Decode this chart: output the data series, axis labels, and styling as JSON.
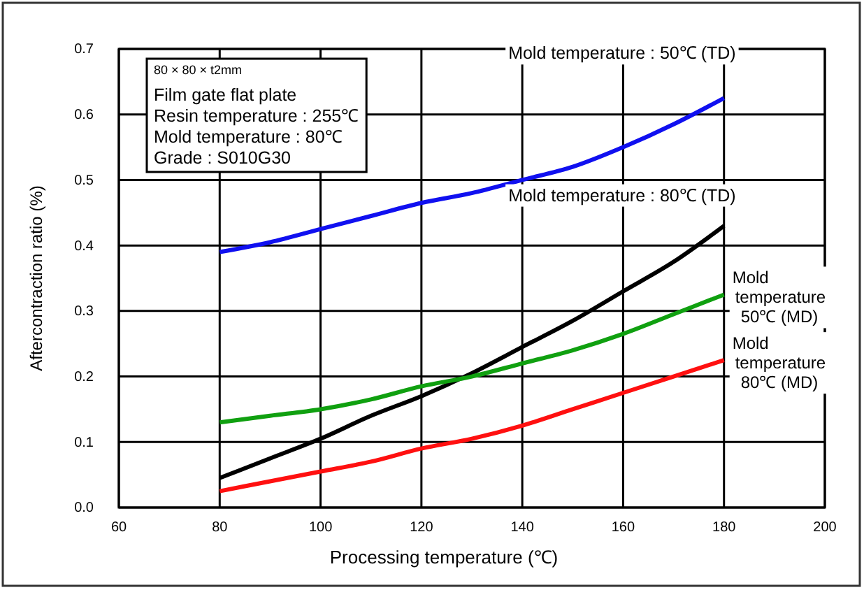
{
  "chart_data": {
    "type": "line",
    "xlabel": "Processing temperature (℃)",
    "ylabel": "Aftercontraction ratio (%)",
    "x": [
      80,
      90,
      100,
      110,
      120,
      130,
      140,
      150,
      160,
      170,
      180
    ],
    "series": [
      {
        "name": "Mold temperature : 50℃ (TD)",
        "color": "#1010f0",
        "values": [
          0.39,
          0.405,
          0.425,
          0.445,
          0.465,
          0.48,
          0.5,
          0.52,
          0.55,
          0.585,
          0.625
        ]
      },
      {
        "name": "Mold temperature : 80℃ (TD)",
        "color": "#000000",
        "values": [
          0.045,
          0.075,
          0.105,
          0.14,
          0.17,
          0.205,
          0.245,
          0.285,
          0.33,
          0.375,
          0.43
        ]
      },
      {
        "name": "Mold temperature 50℃ (MD)",
        "color": "#10a010",
        "values": [
          0.13,
          0.14,
          0.15,
          0.165,
          0.185,
          0.2,
          0.22,
          0.24,
          0.265,
          0.295,
          0.325
        ]
      },
      {
        "name": "Mold temperature 80℃ (MD)",
        "color": "#ff1010",
        "values": [
          0.025,
          0.04,
          0.055,
          0.07,
          0.09,
          0.105,
          0.125,
          0.15,
          0.175,
          0.2,
          0.225
        ]
      }
    ],
    "xlim": [
      60,
      200
    ],
    "xticks": [
      60,
      80,
      100,
      120,
      140,
      160,
      180,
      200
    ],
    "ylim": [
      0,
      0.7
    ],
    "yticks": [
      {
        "value": 0,
        "label": "0.0"
      },
      0.1,
      0.2,
      0.3,
      0.4,
      0.5,
      0.6,
      0.7
    ],
    "grid": true,
    "marker": "none",
    "line_style": "solid",
    "annotations": [
      "80 × 80 × t2mm",
      "Film gate flat plate",
      "Resin temperature : 255℃",
      "Mold temperature : 80℃",
      "Grade : S010G30"
    ]
  }
}
